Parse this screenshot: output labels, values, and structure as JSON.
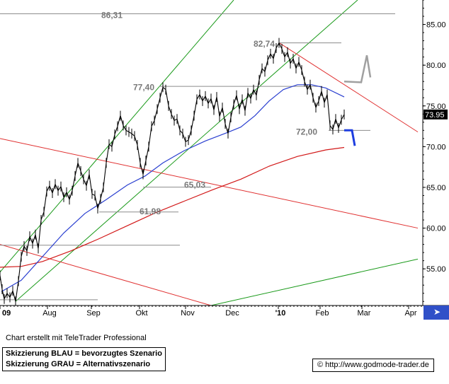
{
  "chart_data": {
    "type": "line",
    "x_ticks": [
      "09",
      "Aug",
      "Sep",
      "Okt",
      "Nov",
      "Dec",
      "'10",
      "Feb",
      "Mar",
      "Apr"
    ],
    "y_ticks": [
      "85.00",
      "80.00",
      "75.00",
      "70.00",
      "65.00",
      "60.00",
      "55.00"
    ],
    "ylim": [
      50.5,
      88.0
    ],
    "last_price_label": "73.95",
    "last_price": 73.95,
    "price_labels": [
      {
        "text": "86,31",
        "value": 86.31
      },
      {
        "text": "82,74",
        "value": 82.74
      },
      {
        "text": "77,40",
        "value": 77.4
      },
      {
        "text": "72,00",
        "value": 72.0
      },
      {
        "text": "65,03",
        "value": 65.03
      },
      {
        "text": "61,98",
        "value": 61.98
      }
    ],
    "horizontal_levels": [
      86.31,
      82.74,
      77.4,
      72.0,
      65.03,
      61.98,
      57.9,
      51.2
    ],
    "price_points": [
      [
        0,
        54.2
      ],
      [
        3,
        52.5
      ],
      [
        6,
        51.3
      ],
      [
        10,
        52.0
      ],
      [
        14,
        51.5
      ],
      [
        18,
        52.3
      ],
      [
        22,
        51.0
      ],
      [
        26,
        53.5
      ],
      [
        30,
        56.5
      ],
      [
        34,
        57.8
      ],
      [
        38,
        57.2
      ],
      [
        42,
        59.0
      ],
      [
        46,
        58.1
      ],
      [
        50,
        59.2
      ],
      [
        54,
        57.5
      ],
      [
        58,
        61.0
      ],
      [
        62,
        62.0
      ],
      [
        66,
        64.5
      ],
      [
        70,
        65.2
      ],
      [
        74,
        64.3
      ],
      [
        78,
        65.4
      ],
      [
        82,
        64.6
      ],
      [
        86,
        65.1
      ],
      [
        90,
        63.8
      ],
      [
        94,
        64.4
      ],
      [
        98,
        63.5
      ],
      [
        102,
        64.6
      ],
      [
        106,
        66.4
      ],
      [
        110,
        68.0
      ],
      [
        114,
        67.0
      ],
      [
        118,
        66.0
      ],
      [
        122,
        65.2
      ],
      [
        126,
        66.6
      ],
      [
        130,
        64.2
      ],
      [
        134,
        64.0
      ],
      [
        138,
        62.4
      ],
      [
        142,
        63.6
      ],
      [
        146,
        65.0
      ],
      [
        150,
        68.0
      ],
      [
        154,
        70.3
      ],
      [
        158,
        70.0
      ],
      [
        162,
        71.5
      ],
      [
        166,
        72.5
      ],
      [
        170,
        73.8
      ],
      [
        174,
        72.6
      ],
      [
        178,
        72.0
      ],
      [
        182,
        71.8
      ],
      [
        186,
        71.6
      ],
      [
        190,
        71.3
      ],
      [
        194,
        70.2
      ],
      [
        198,
        68.0
      ],
      [
        202,
        66.6
      ],
      [
        206,
        68.3
      ],
      [
        210,
        70.0
      ],
      [
        214,
        72.5
      ],
      [
        218,
        73.2
      ],
      [
        222,
        74.6
      ],
      [
        226,
        76.0
      ],
      [
        230,
        77.3
      ],
      [
        234,
        77.0
      ],
      [
        238,
        75.0
      ],
      [
        242,
        74.0
      ],
      [
        246,
        73.2
      ],
      [
        250,
        73.4
      ],
      [
        254,
        72.0
      ],
      [
        258,
        71.6
      ],
      [
        262,
        70.6
      ],
      [
        266,
        70.8
      ],
      [
        270,
        72.0
      ],
      [
        274,
        73.8
      ],
      [
        278,
        75.8
      ],
      [
        282,
        76.4
      ],
      [
        286,
        75.6
      ],
      [
        290,
        76.2
      ],
      [
        294,
        75.3
      ],
      [
        298,
        75.9
      ],
      [
        302,
        74.5
      ],
      [
        306,
        76.1
      ],
      [
        310,
        73.7
      ],
      [
        314,
        74.8
      ],
      [
        318,
        72.8
      ],
      [
        322,
        71.6
      ],
      [
        326,
        73.6
      ],
      [
        330,
        75.2
      ],
      [
        334,
        76.3
      ],
      [
        338,
        74.6
      ],
      [
        342,
        75.8
      ],
      [
        346,
        74.4
      ],
      [
        350,
        76.6
      ],
      [
        354,
        75.9
      ],
      [
        358,
        77.0
      ],
      [
        362,
        76.3
      ],
      [
        366,
        78.2
      ],
      [
        370,
        79.6
      ],
      [
        374,
        79.2
      ],
      [
        378,
        80.6
      ],
      [
        382,
        81.4
      ],
      [
        386,
        80.8
      ],
      [
        390,
        82.1
      ],
      [
        394,
        82.74
      ],
      [
        398,
        82.0
      ],
      [
        402,
        81.0
      ],
      [
        406,
        81.6
      ],
      [
        410,
        80.2
      ],
      [
        414,
        80.8
      ],
      [
        418,
        79.6
      ],
      [
        422,
        80.4
      ],
      [
        426,
        79.4
      ],
      [
        430,
        78.0
      ],
      [
        434,
        77.0
      ],
      [
        438,
        77.6
      ],
      [
        442,
        76.0
      ],
      [
        446,
        74.8
      ],
      [
        450,
        75.6
      ],
      [
        454,
        76.8
      ],
      [
        458,
        75.4
      ],
      [
        462,
        76.4
      ],
      [
        466,
        72.6
      ],
      [
        470,
        72.1
      ],
      [
        474,
        73.4
      ],
      [
        478,
        72.3
      ],
      [
        482,
        73.3
      ],
      [
        486,
        73.95
      ]
    ],
    "ma_blue": [
      [
        2,
        52.2
      ],
      [
        30,
        53.6
      ],
      [
        60,
        56.5
      ],
      [
        90,
        59.4
      ],
      [
        120,
        61.8
      ],
      [
        150,
        63.5
      ],
      [
        180,
        65.3
      ],
      [
        205,
        66.4
      ],
      [
        230,
        68.0
      ],
      [
        260,
        69.5
      ],
      [
        290,
        70.7
      ],
      [
        320,
        71.7
      ],
      [
        340,
        72.4
      ],
      [
        360,
        73.8
      ],
      [
        380,
        75.6
      ],
      [
        400,
        77.0
      ],
      [
        420,
        77.6
      ],
      [
        440,
        77.6
      ],
      [
        460,
        77.2
      ],
      [
        486,
        76.1
      ]
    ],
    "ma_red": [
      [
        0,
        55.2
      ],
      [
        30,
        55.3
      ],
      [
        60,
        55.9
      ],
      [
        100,
        57.2
      ],
      [
        140,
        58.7
      ],
      [
        180,
        60.3
      ],
      [
        220,
        61.9
      ],
      [
        260,
        63.3
      ],
      [
        300,
        64.7
      ],
      [
        340,
        66.0
      ],
      [
        380,
        67.6
      ],
      [
        420,
        68.8
      ],
      [
        460,
        69.6
      ],
      [
        486,
        69.9
      ]
    ],
    "trend_lines_green": [
      {
        "from": [
          0,
          54.6
        ],
        "to": [
          330,
          88.0
        ]
      },
      {
        "from": [
          22,
          51.0
        ],
        "to": [
          505,
          88.0
        ]
      },
      {
        "from": [
          298,
          50.5
        ],
        "to": [
          590,
          56.2
        ]
      }
    ],
    "trend_lines_red": [
      {
        "from": [
          0,
          71.0
        ],
        "to": [
          590,
          60.0
        ]
      },
      {
        "from": [
          0,
          58.0
        ],
        "to": [
          298,
          50.5
        ]
      },
      {
        "from": [
          395,
          82.7
        ],
        "to": [
          590,
          71.8
        ]
      }
    ],
    "scenario_blue": [
      [
        486,
        72.0
      ],
      [
        497,
        72.0
      ],
      [
        501,
        70.1
      ]
    ],
    "scenario_gray": [
      [
        486,
        78.0
      ],
      [
        510,
        77.9
      ],
      [
        518,
        81.2
      ],
      [
        523,
        78.5
      ]
    ],
    "grid": false
  },
  "footer": {
    "credit": "Chart erstellt mit TeleTrader Professional",
    "legend_blue": "Skizzierung BLAU = bevorzugtes Szenario",
    "legend_gray": "Skizzierung GRAU = Alternativszenario",
    "url": "© http://www.godmode-trader.de"
  },
  "colors": {
    "price": "#000000",
    "ma_blue": "#2a3fd0",
    "ma_red": "#d21818",
    "trend_green": "#1a9a1a",
    "trend_red": "#e03030",
    "levels": "#8c8c8c",
    "scenario_blue": "#1e3ee0",
    "scenario_gray": "#a0a0a0",
    "labels": "#7a7a7a"
  }
}
